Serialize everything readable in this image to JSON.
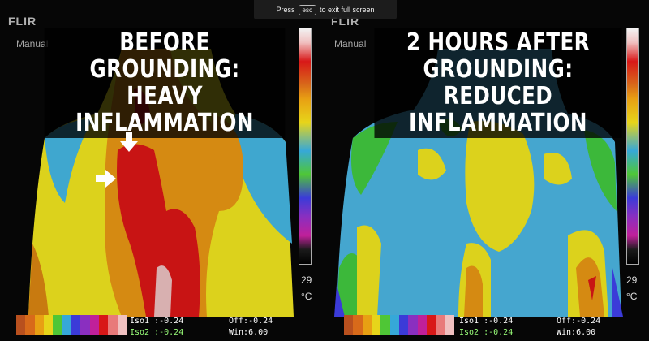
{
  "fullscreen": {
    "prefix": "Press",
    "key": "esc",
    "suffix": "to exit full screen"
  },
  "left": {
    "brand": "FLIR",
    "mode": "Manual",
    "title_line1": "BEFORE GROUNDING:",
    "title_line2": "HEAVY INFLAMMATION",
    "scale_bottom": "29",
    "scale_unit": "°C",
    "iso1": "Iso1 :-0.24",
    "iso2": "Iso2 :-0.24",
    "off": "Off:-0.24",
    "win": "Win:6.00"
  },
  "right": {
    "brand": "FLIR",
    "mode": "Manual",
    "title_line1": "2 HOURS AFTER GROUNDING:",
    "title_line2": "REDUCED INFLAMMATION",
    "scale_bottom": "29",
    "scale_unit": "°C",
    "iso1": "Iso1 :-0.24",
    "iso2": "Iso2 :-0.24",
    "off": "Off:-0.24",
    "win": "Win:6.00"
  },
  "palette_colors": [
    "#b8501e",
    "#d86a1a",
    "#e8a013",
    "#e7d51a",
    "#4fc636",
    "#36a8d8",
    "#3b3bd8",
    "#8a2fc0",
    "#c0209a",
    "#d81818",
    "#e87a7a",
    "#f0c0c0"
  ]
}
